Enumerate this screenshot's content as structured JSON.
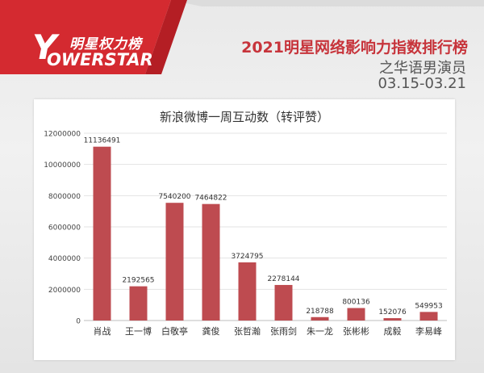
{
  "header": {
    "logo_cn": "明星权力榜",
    "logo_y": "Y",
    "logo_en": "OWERSTAR",
    "title": "2021明星网络影响力指数排行榜",
    "subtitle": "之华语男演员",
    "date_range": "03.15-03.21"
  },
  "colors": {
    "bar": "#be4b50",
    "banner_red": "#d42a30",
    "title_red": "#c7343b"
  },
  "chart_data": {
    "type": "bar",
    "title": "新浪微博一周互动数（转评赞）",
    "categories": [
      "肖战",
      "王一博",
      "白敬亭",
      "龚俊",
      "张哲瀚",
      "张雨剑",
      "朱一龙",
      "张彬彬",
      "成毅",
      "李易峰"
    ],
    "values": [
      11136491,
      2192565,
      7540200,
      7464822,
      3724795,
      2278144,
      218788,
      800136,
      152076,
      549953
    ],
    "value_labels": [
      "11136491",
      "2192565",
      "7540200",
      "7464822",
      "3724795",
      "2278144",
      "218788",
      "800136",
      "152076",
      "549953"
    ],
    "yticks": [
      "0",
      "2000000",
      "4000000",
      "6000000",
      "8000000",
      "10000000",
      "12000000"
    ],
    "ylim": [
      0,
      12000000
    ],
    "grid": true,
    "legend": "none"
  }
}
